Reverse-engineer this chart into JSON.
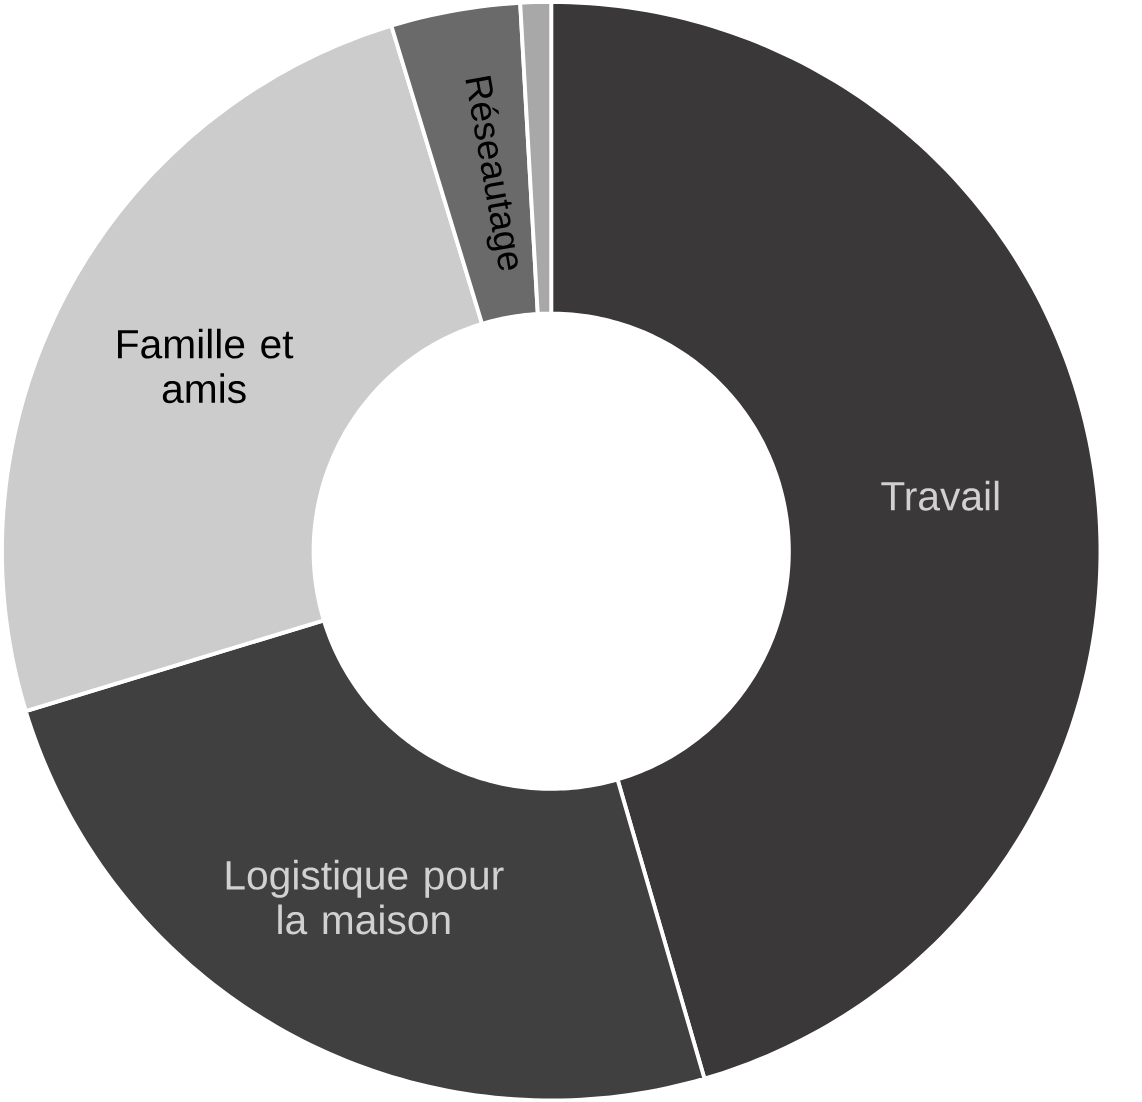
{
  "chart_data": {
    "type": "donut",
    "categories": [
      "Travail",
      "Logistique pour la maison",
      "Famille et amis",
      "Réseautage",
      null
    ],
    "values": [
      45.5,
      24.8,
      25.0,
      3.8,
      0.9
    ],
    "colors": [
      "#3a3839",
      "#404040",
      "#cccccc",
      "#6a6a6a",
      "#a8a8a8"
    ]
  }
}
